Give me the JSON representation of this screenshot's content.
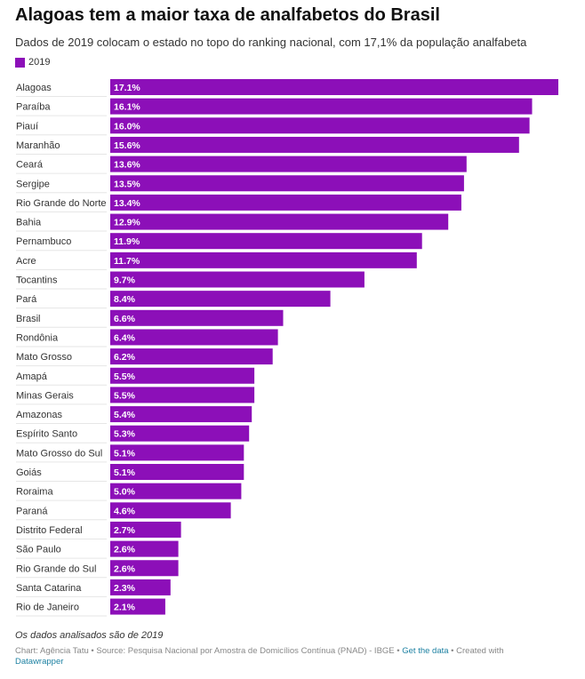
{
  "title": "Alagoas tem a maior taxa de analfabetos do Brasil",
  "subtitle": "Dados de 2019 colocam o estado no topo do ranking nacional, com 17,1% da população analfabeta",
  "notes": "Os dados analisados são de 2019",
  "footer": {
    "chart_credit": "Chart: Agência Tatu",
    "separator": " • ",
    "source": "Source: Pesquisa Nacional por Amostra de Domicílios Contínua (PNAD) - IBGE",
    "get_data": "Get the data",
    "created_with": "Created with",
    "datawrapper": "Datawrapper"
  },
  "colors": {
    "bar": "#8c0fb8",
    "divider": "#e6e6e6"
  },
  "chart_data": {
    "type": "bar",
    "orientation": "horizontal",
    "legend": {
      "position": "top-left"
    },
    "grid": false,
    "xlim": [
      0,
      17.1
    ],
    "value_format": "0.0%",
    "categories": [
      "Alagoas",
      "Paraíba",
      "Piauí",
      "Maranhão",
      "Ceará",
      "Sergipe",
      "Rio Grande do Norte",
      "Bahia",
      "Pernambuco",
      "Acre",
      "Tocantins",
      "Pará",
      "Brasil",
      "Rondônia",
      "Mato Grosso",
      "Amapá",
      "Minas Gerais",
      "Amazonas",
      "Espírito Santo",
      "Mato Grosso do Sul",
      "Goiás",
      "Roraima",
      "Paraná",
      "Distrito Federal",
      "São Paulo",
      "Rio Grande do Sul",
      "Santa Catarina",
      "Rio de Janeiro"
    ],
    "series": [
      {
        "name": "2019",
        "values": [
          17.1,
          16.1,
          16.0,
          15.6,
          13.6,
          13.5,
          13.4,
          12.9,
          11.9,
          11.7,
          9.7,
          8.4,
          6.6,
          6.4,
          6.2,
          5.5,
          5.5,
          5.4,
          5.3,
          5.1,
          5.1,
          5.0,
          4.6,
          2.7,
          2.6,
          2.6,
          2.3,
          2.1
        ]
      }
    ]
  }
}
